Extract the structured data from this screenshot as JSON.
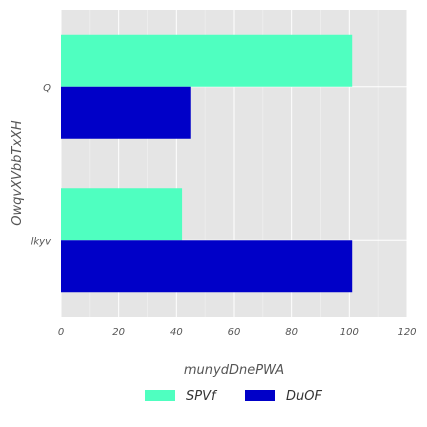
{
  "chart_data": {
    "type": "bar",
    "orientation": "horizontal",
    "categories": [
      "Q",
      "lkyv"
    ],
    "series": [
      {
        "name": "SPVf",
        "values": [
          101,
          42
        ],
        "color": "#4fffc0"
      },
      {
        "name": "DuOF",
        "values": [
          45,
          101
        ],
        "color": "#0000c8"
      }
    ],
    "xlabel": "munydDnePWA",
    "ylabel": "OwqvXVbbTxXH",
    "xlim": [
      0,
      120
    ],
    "xticks": [
      0,
      20,
      40,
      60,
      80,
      100,
      120
    ],
    "grid": true,
    "legend_position": "bottom-center",
    "background_color": "#e5e5e5"
  }
}
